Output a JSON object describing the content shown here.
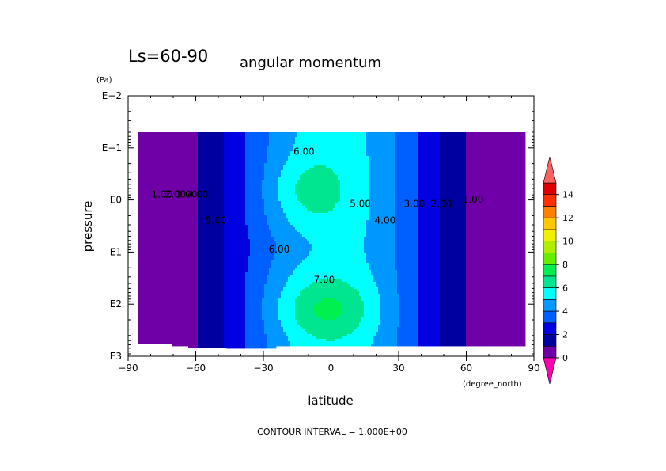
{
  "chart_data": {
    "type": "contour",
    "title": "Ls=60-90",
    "subtitle": "angular momentum",
    "xlabel": "latitude",
    "xunits": "(degree_north)",
    "ylabel": "pressure",
    "yunits": "(Pa)",
    "x_ticks": [
      "−90",
      "−60",
      "−30",
      "0",
      "30",
      "60",
      "90"
    ],
    "x_tick_values": [
      -90,
      -60,
      -30,
      0,
      30,
      60,
      90
    ],
    "xlim": [
      -90,
      90
    ],
    "y_ticks": [
      "E−2",
      "E−1",
      "E0",
      "E1",
      "E2",
      "E3"
    ],
    "y_tick_values": [
      0.01,
      0.1,
      1,
      10,
      100,
      1000
    ],
    "ylim": [
      0.01,
      1000
    ],
    "y_scale": "log",
    "y_inverted": true,
    "contour_interval": 1.0,
    "footer": "CONTOUR INTERVAL = 1.000E+00",
    "contour_labels": [
      {
        "text": "6.00",
        "lat": -12,
        "p": 0.12
      },
      {
        "text": "6.00",
        "lat": -23,
        "p": 9
      },
      {
        "text": "7.00",
        "lat": -3,
        "p": 35
      },
      {
        "text": "5.00",
        "lat": -51,
        "p": 2.5
      },
      {
        "text": "5.00",
        "lat": 13,
        "p": 1.2
      },
      {
        "text": "4.00",
        "lat": -59,
        "p": 0.8
      },
      {
        "text": "4.00",
        "lat": 24,
        "p": 2.5
      },
      {
        "text": "3.00",
        "lat": -64,
        "p": 0.8
      },
      {
        "text": "3.00",
        "lat": 37,
        "p": 1.2
      },
      {
        "text": "2.00",
        "lat": -69,
        "p": 0.8
      },
      {
        "text": "2.00",
        "lat": 49,
        "p": 1.2
      },
      {
        "text": "1.00",
        "lat": -75,
        "p": 0.8
      },
      {
        "text": "1.00",
        "lat": 63,
        "p": 1.0
      }
    ],
    "colorbar": {
      "labels": [
        "0",
        "2",
        "4",
        "6",
        "8",
        "10",
        "12",
        "14"
      ],
      "label_values": [
        0,
        2,
        4,
        6,
        8,
        10,
        12,
        14
      ],
      "levels": [
        0,
        1,
        2,
        3,
        4,
        5,
        6,
        7,
        8,
        9,
        10,
        11,
        12,
        13,
        14,
        15
      ],
      "colors": [
        "#6f00a8",
        "#0000a0",
        "#0000e0",
        "#0060ff",
        "#0098ff",
        "#00ffff",
        "#00e690",
        "#00f050",
        "#66ee00",
        "#b0ee00",
        "#f0f000",
        "#ffc800",
        "#ff8000",
        "#ff3000",
        "#e00000"
      ],
      "under_color": "#ff00b0",
      "over_color": "#ff6060"
    }
  }
}
